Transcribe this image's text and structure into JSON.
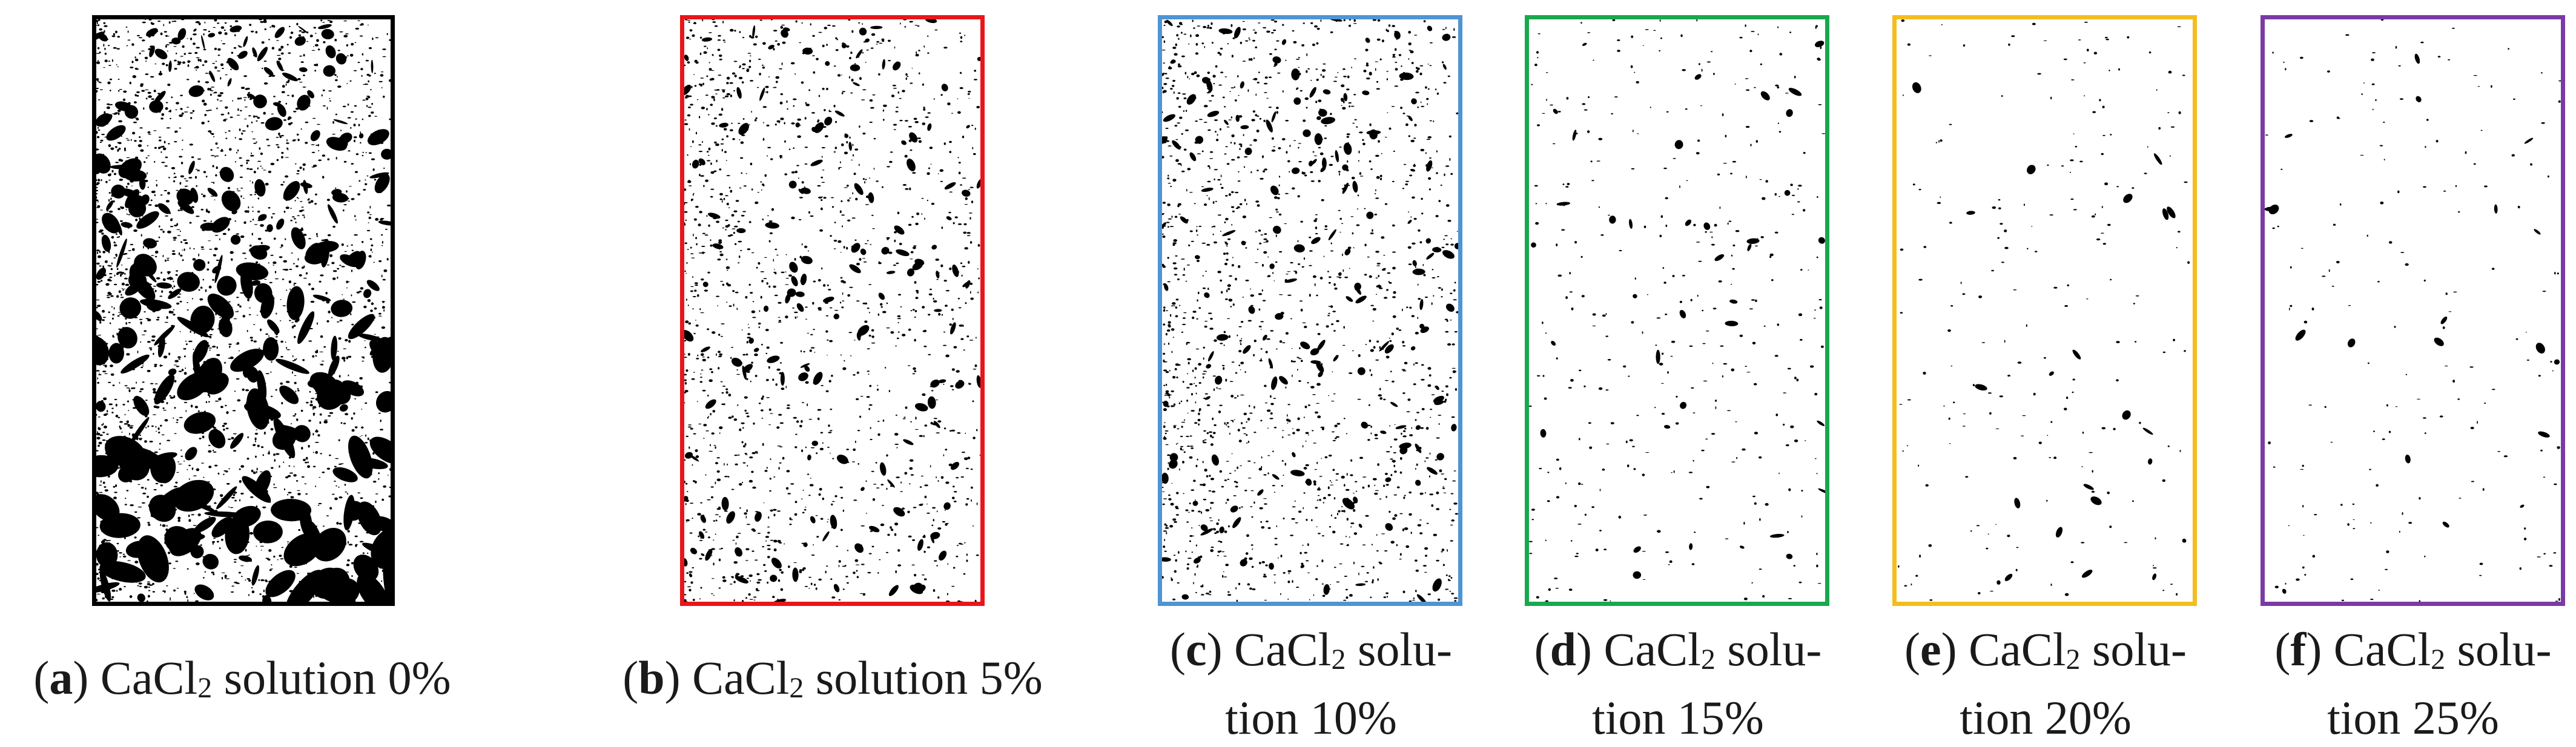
{
  "panels": [
    {
      "id": "a",
      "letter": "a",
      "prefix": "CaCl",
      "subscript": "2",
      "line1": " solution 0%",
      "line2": "",
      "border_color": "#000000",
      "speckle_density": 1.0
    },
    {
      "id": "b",
      "letter": "b",
      "prefix": "CaCl",
      "subscript": "2",
      "line1": " solution 5%",
      "line2": "",
      "border_color": "#e8161b",
      "speckle_density": 0.55
    },
    {
      "id": "c",
      "letter": "c",
      "prefix": "CaCl",
      "subscript": "2",
      "line1": " solu-",
      "line2": "tion 10%",
      "border_color": "#4f94d4",
      "speckle_density": 0.6
    },
    {
      "id": "d",
      "letter": "d",
      "prefix": "CaCl",
      "subscript": "2",
      "line1": " solu-",
      "line2": "tion 15%",
      "border_color": "#18a84e",
      "speckle_density": 0.12
    },
    {
      "id": "e",
      "letter": "e",
      "prefix": "CaCl",
      "subscript": "2",
      "line1": " solu-",
      "line2": "tion 20%",
      "border_color": "#f3bd1d",
      "speckle_density": 0.06
    },
    {
      "id": "f",
      "letter": "f",
      "prefix": "CaCl",
      "subscript": "2",
      "line1": " solu-",
      "line2": "tion 25%",
      "border_color": "#7a3aa6",
      "speckle_density": 0.05
    }
  ]
}
